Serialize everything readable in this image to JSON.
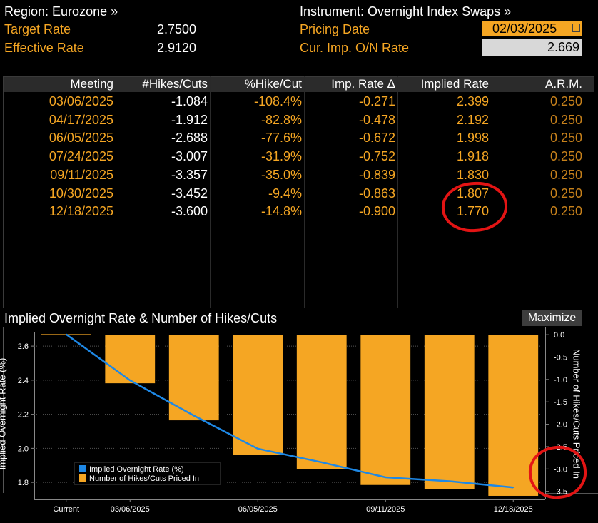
{
  "header": {
    "region": "Region: Eurozone »",
    "instrument": "Instrument: Overnight Index Swaps »",
    "target_rate_label": "Target Rate",
    "target_rate_value": "2.7500",
    "effective_rate_label": "Effective Rate",
    "effective_rate_value": "2.9120",
    "pricing_date_label": "Pricing Date",
    "pricing_date_value": "02/03/2025",
    "cur_imp_label": "Cur. Imp. O/N Rate",
    "cur_imp_value": "2.669"
  },
  "table": {
    "columns": [
      "Meeting",
      "#Hikes/Cuts",
      "%Hike/Cut",
      "Imp. Rate Δ",
      "Implied Rate",
      "A.R.M."
    ],
    "rows": [
      {
        "meeting": "03/06/2025",
        "hikes": "-1.084",
        "pct": "-108.4%",
        "delta": "-0.271",
        "implied": "2.399",
        "arm": "0.250"
      },
      {
        "meeting": "04/17/2025",
        "hikes": "-1.912",
        "pct": "-82.8%",
        "delta": "-0.478",
        "implied": "2.192",
        "arm": "0.250"
      },
      {
        "meeting": "06/05/2025",
        "hikes": "-2.688",
        "pct": "-77.6%",
        "delta": "-0.672",
        "implied": "1.998",
        "arm": "0.250"
      },
      {
        "meeting": "07/24/2025",
        "hikes": "-3.007",
        "pct": "-31.9%",
        "delta": "-0.752",
        "implied": "1.918",
        "arm": "0.250"
      },
      {
        "meeting": "09/11/2025",
        "hikes": "-3.357",
        "pct": "-35.0%",
        "delta": "-0.839",
        "implied": "1.830",
        "arm": "0.250"
      },
      {
        "meeting": "10/30/2025",
        "hikes": "-3.452",
        "pct": "-9.4%",
        "delta": "-0.863",
        "implied": "1.807",
        "arm": "0.250"
      },
      {
        "meeting": "12/18/2025",
        "hikes": "-3.600",
        "pct": "-14.8%",
        "delta": "-0.900",
        "implied": "1.770",
        "arm": "0.250"
      }
    ]
  },
  "chart": {
    "title": "Implied Overnight Rate & Number of Hikes/Cuts",
    "maximize_label": "Maximize"
  },
  "chart_data": {
    "type": "bar",
    "title": "Implied Overnight Rate & Number of Hikes/Cuts",
    "categories": [
      "Current",
      "03/06/2025",
      "04/17/2025",
      "06/05/2025",
      "07/24/2025",
      "09/11/2025",
      "10/30/2025",
      "12/18/2025"
    ],
    "x_tick_labels": [
      "Current",
      "03/06/2025",
      "06/05/2025",
      "09/11/2025",
      "12/18/2025"
    ],
    "ylabel": "Implied Overnight Rate (%)",
    "ylabel_right": "Number of Hikes/Cuts Priced In",
    "ylim": [
      1.7,
      2.68
    ],
    "ylim_right": [
      -3.68,
      0.05
    ],
    "y_ticks": [
      "2.6",
      "2.4",
      "2.2",
      "2.0",
      "1.8"
    ],
    "y_ticks_right": [
      "0.0",
      "-0.5",
      "-1.0",
      "-1.5",
      "-2.0",
      "-2.5",
      "-3.0",
      "-3.5"
    ],
    "series": [
      {
        "name": "Implied Overnight Rate (%)",
        "type": "line",
        "color": "#1e88e5",
        "axis": "left",
        "values": [
          2.669,
          2.399,
          2.192,
          1.998,
          1.918,
          1.83,
          1.807,
          1.77
        ]
      },
      {
        "name": "Number of Hikes/Cuts Priced In",
        "type": "bar",
        "color": "#f5a623",
        "axis": "right",
        "values": [
          0,
          -1.084,
          -1.912,
          -2.688,
          -3.007,
          -3.357,
          -3.452,
          -3.6
        ]
      }
    ],
    "legend_position": "bottom-left"
  },
  "colors": {
    "accent": "#f5a623",
    "line": "#1e88e5",
    "annotation": "#e31414",
    "header_bg": "#2b2b2b"
  }
}
